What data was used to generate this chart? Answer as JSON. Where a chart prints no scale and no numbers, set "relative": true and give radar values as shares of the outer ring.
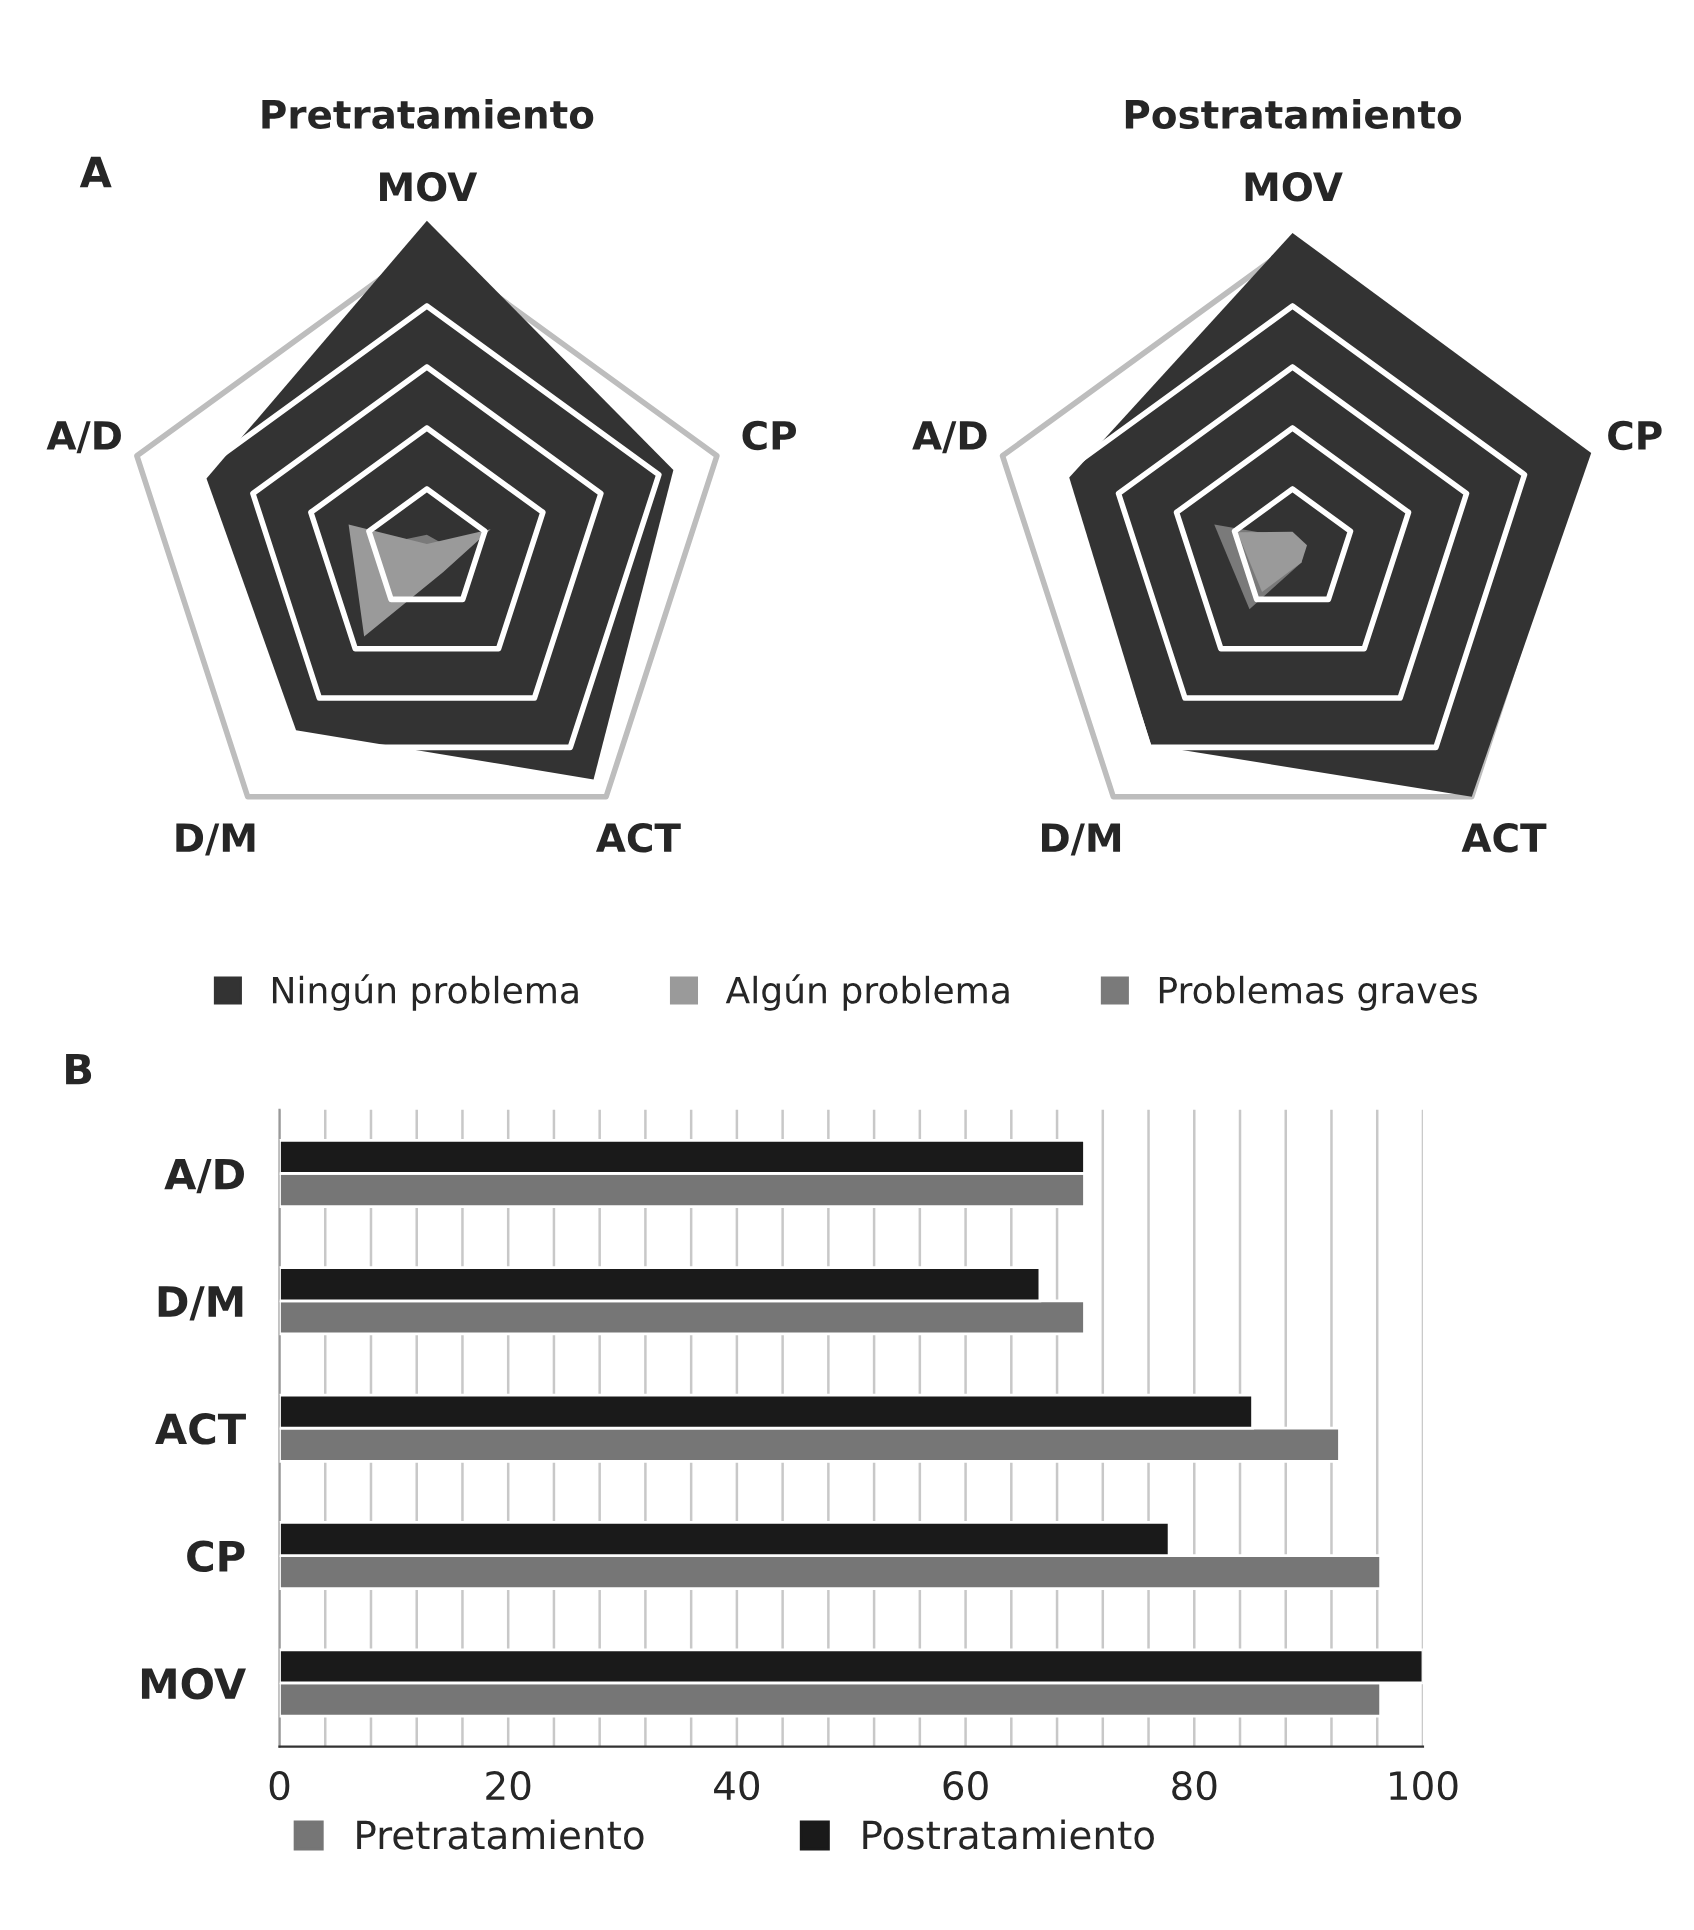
{
  "chart_data": [
    {
      "type": "radar",
      "title": "Pretratamiento",
      "relative": true,
      "grid": true,
      "legend": "bottom",
      "annotations": [
        "A"
      ],
      "categories": [
        "MOV",
        "CP",
        "ACT",
        "D/M",
        "A/D"
      ],
      "series": [
        {
          "name": "Ningún problema",
          "color": "#333333",
          "values": [
            1.08,
            0.85,
            0.93,
            0.73,
            0.76
          ]
        },
        {
          "name": "Algún problema",
          "color": "#9a9a9a",
          "values": [
            0.02,
            0.22,
            0.09,
            0.35,
            0.27
          ]
        },
        {
          "name": "Problemas graves",
          "color": "#7a7a7a",
          "values": [
            0.05,
            0.06,
            0.05,
            0.1,
            0.1
          ]
        }
      ]
    },
    {
      "type": "radar",
      "title": "Postratamiento",
      "relative": true,
      "grid": true,
      "categories": [
        "MOV",
        "CP",
        "ACT",
        "D/M",
        "A/D"
      ],
      "series": [
        {
          "color": "#333333",
          "values": [
            1.04,
            1.03,
            1.0,
            0.79,
            0.77
          ]
        },
        {
          "color": "#9a9a9a",
          "values": [
            0.06,
            0.05,
            0.05,
            0.17,
            0.19
          ]
        },
        {
          "color": "#7a7a7a",
          "values": [
            0.04,
            0.04,
            0.05,
            0.24,
            0.27
          ]
        }
      ]
    },
    {
      "type": "bar",
      "orientation": "horizontal",
      "grid": "x",
      "legend": "bottom left",
      "annotations": [
        "B"
      ],
      "categories": [
        "A/D",
        "D/M",
        "ACT",
        "CP",
        "MOV"
      ],
      "xlim": [
        0,
        100
      ],
      "xticks": [
        0,
        {
          "value": 4,
          "label": null
        },
        {
          "value": 8,
          "label": null
        },
        {
          "value": 12,
          "label": null
        },
        {
          "value": 16,
          "label": null
        },
        20,
        {
          "value": 24,
          "label": null
        },
        {
          "value": 28,
          "label": null
        },
        {
          "value": 32,
          "label": null
        },
        {
          "value": 36,
          "label": null
        },
        40,
        {
          "value": 44,
          "label": null
        },
        {
          "value": 48,
          "label": null
        },
        {
          "value": 52,
          "label": null
        },
        {
          "value": 56,
          "label": null
        },
        60,
        {
          "value": 64,
          "label": null
        },
        {
          "value": 68,
          "label": null
        },
        {
          "value": 72,
          "label": null
        },
        {
          "value": 76,
          "label": null
        },
        80,
        {
          "value": 84,
          "label": null
        },
        {
          "value": 88,
          "label": null
        },
        {
          "value": 92,
          "label": null
        },
        {
          "value": 96,
          "label": null
        },
        100
      ],
      "series": [
        {
          "name": "Pretratamiento",
          "color": "#767676",
          "values": [
            70.4,
            70.4,
            92.7,
            96.3,
            96.3
          ]
        },
        {
          "name": "Postratamiento",
          "color": "#1a1a1a",
          "values": [
            70.4,
            66.5,
            85.1,
            77.8,
            100
          ]
        }
      ]
    }
  ]
}
